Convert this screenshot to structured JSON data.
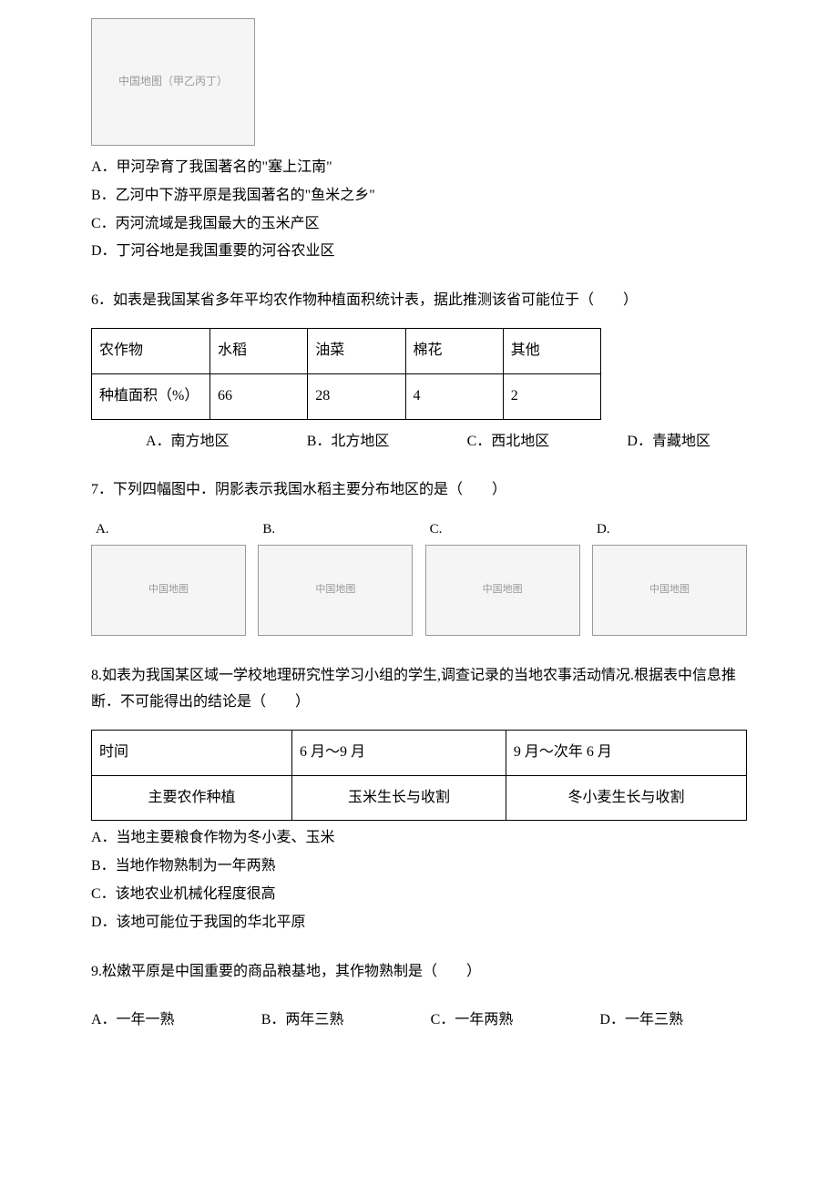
{
  "q5_map_caption": "中国地图（甲乙丙丁）",
  "q5": {
    "optA": "A．甲河孕育了我国著名的\"塞上江南\"",
    "optB": "B．乙河中下游平原是我国著名的\"鱼米之乡\"",
    "optC": "C．丙河流域是我国最大的玉米产区",
    "optD": "D．丁河谷地是我国重要的河谷农业区"
  },
  "q6": {
    "stem": "6．如表是我国某省多年平均农作物种植面积统计表，据此推测该省可能位于（　　）",
    "table": {
      "headers": [
        "农作物",
        "水稻",
        "油菜",
        "棉花",
        "其他"
      ],
      "row_label": "种植面积（%）",
      "values": [
        "66",
        "28",
        "4",
        "2"
      ]
    },
    "optA": "A．南方地区",
    "optB": "B．北方地区",
    "optC": "C．西北地区",
    "optD": "D．青藏地区"
  },
  "q7": {
    "stem": "7．下列四幅图中．阴影表示我国水稻主要分布地区的是（　　）",
    "labels": {
      "A": "A.",
      "B": "B.",
      "C": "C.",
      "D": "D."
    },
    "map_caption": "中国地图"
  },
  "q8": {
    "stem": "8.如表为我国某区域一学校地理研究性学习小组的学生,调查记录的当地农事活动情况.根据表中信息推断．不可能得出的结论是（　　）",
    "table": {
      "headers": [
        "时间",
        "6 月～9 月",
        "9 月～次年 6 月"
      ],
      "row_label": "主要农作种植",
      "values": [
        "玉米生长与收割",
        "冬小麦生长与收割"
      ]
    },
    "optA": "A．当地主要粮食作物为冬小麦、玉米",
    "optB": "B．当地作物熟制为一年两熟",
    "optC": "C．该地农业机械化程度很高",
    "optD": "D．该地可能位于我国的华北平原"
  },
  "q9": {
    "stem": "9.松嫩平原是中国重要的商品粮基地，其作物熟制是（　　）",
    "optA": "A．一年一熟",
    "optB": "B．两年三熟",
    "optC": "C．一年两熟",
    "optD": "D．一年三熟"
  }
}
